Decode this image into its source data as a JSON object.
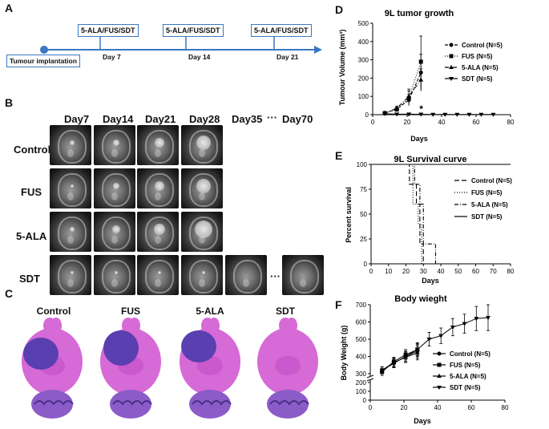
{
  "panel_letters": {
    "a": "A",
    "b": "B",
    "c": "C",
    "d": "D",
    "e": "E",
    "f": "F"
  },
  "timeline": {
    "start_label": "Tumour implantation",
    "treatment_label": "5-ALA/FUS/SDT",
    "days": [
      "Day 7",
      "Day 14",
      "Day 21"
    ],
    "color": "#3a78c2"
  },
  "mri": {
    "days": [
      "Day7",
      "Day14",
      "Day21",
      "Day28",
      "Day35",
      "Day70"
    ],
    "ellipsis": "···",
    "rows": [
      "Control",
      "FUS",
      "5-ALA",
      "SDT"
    ],
    "sdt_ellipsis": "···",
    "tumor_sizes": [
      [
        0.15,
        0.2,
        0.3,
        0.45
      ],
      [
        0.1,
        0.2,
        0.32,
        0.45
      ],
      [
        0.15,
        0.25,
        0.35,
        0.55
      ],
      [
        0.1,
        0.1,
        0.1,
        0.05,
        0.0,
        0.0
      ]
    ]
  },
  "histology": {
    "labels": [
      "Control",
      "FUS",
      "5-ALA",
      "SDT"
    ],
    "tissue_color": "#d66ad6",
    "tumor_color": "#5a3fb0"
  },
  "chart_data": [
    {
      "id": "tumor_growth",
      "type": "line",
      "title": "9L tumor growth",
      "xlabel": "Days",
      "ylabel": "Tumour Volume (mm³)",
      "xlim": [
        0,
        80
      ],
      "ylim": [
        0,
        500
      ],
      "xticks": [
        "0",
        "20",
        "40",
        "60",
        "80"
      ],
      "yticks": [
        "0",
        "100",
        "200",
        "300",
        "400",
        "500"
      ],
      "annotation": "*",
      "series": [
        {
          "name": "Control (N=5)",
          "marker": "●",
          "dash": "4,2",
          "x": [
            7,
            14,
            21,
            28
          ],
          "y": [
            10,
            30,
            80,
            230
          ],
          "err": [
            2,
            10,
            30,
            100
          ]
        },
        {
          "name": "FUS (N=5)",
          "marker": "■",
          "dash": "1,2",
          "x": [
            7,
            14,
            21,
            28
          ],
          "y": [
            8,
            28,
            90,
            290
          ],
          "err": [
            2,
            10,
            40,
            140
          ]
        },
        {
          "name": "5-ALA (N=5)",
          "marker": "▲",
          "dash": "5,2,1,2",
          "x": [
            7,
            14,
            21,
            28
          ],
          "y": [
            8,
            35,
            100,
            190
          ],
          "err": [
            2,
            12,
            40,
            60
          ]
        },
        {
          "name": "SDT (N=5)",
          "marker": "▼",
          "dash": "",
          "x": [
            7,
            14,
            21,
            28,
            35,
            42,
            49,
            56,
            63,
            70
          ],
          "y": [
            5,
            3,
            3,
            2,
            1,
            1,
            1,
            1,
            1,
            1
          ],
          "err": [
            1,
            1,
            1,
            1,
            0,
            0,
            0,
            0,
            0,
            0
          ]
        }
      ]
    },
    {
      "id": "survival",
      "type": "line",
      "title": "9L Survival curve",
      "xlabel": "Days",
      "ylabel": "Percent survival",
      "xlim": [
        0,
        80
      ],
      "ylim": [
        0,
        100
      ],
      "xticks": [
        "0",
        "10",
        "20",
        "30",
        "40",
        "50",
        "60",
        "70",
        "80"
      ],
      "yticks": [
        "0",
        "25",
        "50",
        "75",
        "100"
      ],
      "series": [
        {
          "name": "Control (N=5)",
          "dash": "6,3",
          "x": [
            0,
            22,
            22,
            26,
            26,
            28,
            28,
            30,
            30
          ],
          "y": [
            100,
            100,
            80,
            80,
            60,
            60,
            20,
            20,
            0
          ]
        },
        {
          "name": "FUS (N=5)",
          "dash": "1,2",
          "x": [
            0,
            24,
            24,
            27,
            27,
            29,
            29
          ],
          "y": [
            100,
            100,
            60,
            60,
            40,
            40,
            0
          ]
        },
        {
          "name": "5-ALA (N=5)",
          "dash": "5,2,1,2",
          "x": [
            0,
            25,
            25,
            28,
            28,
            30,
            30,
            37,
            37
          ],
          "y": [
            100,
            100,
            80,
            80,
            60,
            60,
            20,
            20,
            0
          ]
        },
        {
          "name": "SDT (N=5)",
          "dash": "",
          "x": [
            0,
            80
          ],
          "y": [
            100,
            100
          ]
        }
      ]
    },
    {
      "id": "body_weight",
      "type": "line",
      "title": "Body wieght",
      "xlabel": "Days",
      "ylabel": "Body Weight (g)",
      "xlim": [
        0,
        80
      ],
      "ylim": [
        0,
        700
      ],
      "axis_break": [
        200,
        300
      ],
      "xticks": [
        "0",
        "20",
        "40",
        "60",
        "80"
      ],
      "yticks_low": [
        "0",
        "100",
        "200"
      ],
      "yticks_high": [
        "300",
        "400",
        "500",
        "600",
        "700"
      ],
      "series": [
        {
          "name": "Control (N=5)",
          "marker": "●",
          "x": [
            7,
            14,
            21,
            28
          ],
          "y": [
            320,
            360,
            400,
            430
          ],
          "err": [
            20,
            25,
            30,
            40
          ]
        },
        {
          "name": "FUS (N=5)",
          "marker": "■",
          "x": [
            7,
            14,
            21,
            28
          ],
          "y": [
            310,
            370,
            410,
            440
          ],
          "err": [
            20,
            25,
            30,
            40
          ]
        },
        {
          "name": "5-ALA (N=5)",
          "marker": "▲",
          "x": [
            7,
            14,
            21,
            28
          ],
          "y": [
            320,
            365,
            395,
            420
          ],
          "err": [
            20,
            25,
            30,
            40
          ]
        },
        {
          "name": "SDT (N=5)",
          "marker": "▼",
          "x": [
            7,
            14,
            21,
            28,
            35,
            42,
            49,
            56,
            63,
            70
          ],
          "y": [
            320,
            360,
            400,
            440,
            500,
            520,
            570,
            590,
            620,
            625
          ],
          "err": [
            20,
            25,
            30,
            35,
            40,
            45,
            50,
            55,
            70,
            75
          ]
        }
      ]
    }
  ]
}
